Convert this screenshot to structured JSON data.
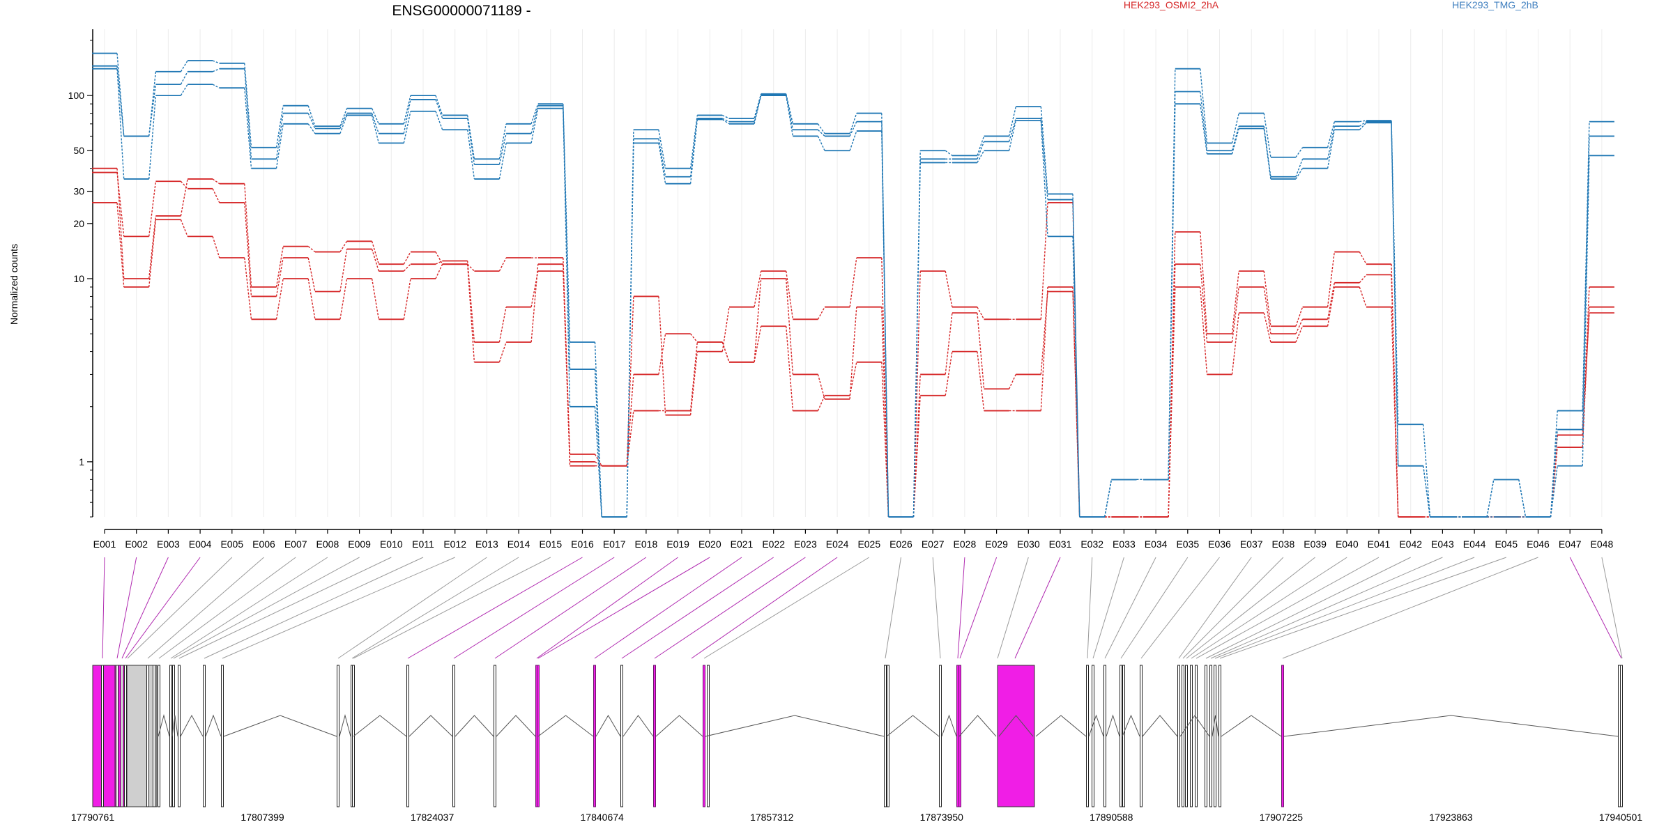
{
  "chart_data": {
    "type": "line",
    "title": "ENSG00000071189 -",
    "ylabel": "Normalized counts",
    "y_scale": "log",
    "ylim": [
      0.5,
      230
    ],
    "y_ticks": [
      1,
      10,
      20,
      30,
      50,
      100
    ],
    "y_tick_labels": [
      "1",
      "10",
      "20",
      "30",
      "50",
      "100"
    ],
    "categories": [
      "E001",
      "E002",
      "E003",
      "E004",
      "E005",
      "E006",
      "E007",
      "E008",
      "E009",
      "E010",
      "E011",
      "E012",
      "E013",
      "E014",
      "E015",
      "E016",
      "E017",
      "E018",
      "E019",
      "E020",
      "E021",
      "E022",
      "E023",
      "E024",
      "E025",
      "E026",
      "E027",
      "E028",
      "E029",
      "E030",
      "E031",
      "E032",
      "E033",
      "E034",
      "E035",
      "E036",
      "E037",
      "E038",
      "E039",
      "E040",
      "E041",
      "E042",
      "E043",
      "E044",
      "E045",
      "E046",
      "E047",
      "E048"
    ],
    "legend": [
      {
        "name": "HEK293_OSMI2_2hA",
        "color": "#d62728",
        "position": "top-center"
      },
      {
        "name": "HEK293_TMG_2hB",
        "color": "#1f77b4",
        "position": "top-right"
      }
    ],
    "series": [
      {
        "group": "HEK293_OSMI2_2hA",
        "color": "#d62728",
        "values": [
          40,
          10,
          22,
          35,
          33,
          9,
          15,
          14,
          16,
          12,
          14,
          12,
          11,
          13,
          13,
          1.1,
          0.95,
          8,
          1.8,
          4,
          7,
          11,
          6,
          7,
          13,
          0.5,
          11,
          7,
          6,
          6,
          26,
          0.5,
          0.5,
          0.5,
          18,
          5,
          11,
          5.5,
          7,
          14,
          12,
          0.5,
          0.5,
          0.5,
          0.5,
          0.5,
          1.4,
          9
        ]
      },
      {
        "group": "HEK293_OSMI2_2hA",
        "color": "#d62728",
        "values": [
          38,
          17,
          34,
          31,
          26,
          8,
          13,
          8.5,
          14.5,
          11,
          12,
          12.5,
          4.5,
          7,
          11,
          1,
          0.95,
          3,
          5,
          4.5,
          3.5,
          10,
          3,
          2.2,
          7,
          0.5,
          3,
          6.5,
          2.5,
          3,
          8.5,
          0.5,
          0.5,
          0.5,
          12,
          4.5,
          9,
          5,
          6,
          9.5,
          10.5,
          0.5,
          0.5,
          0.5,
          0.5,
          0.5,
          1.2,
          7
        ]
      },
      {
        "group": "HEK293_OSMI2_2hA",
        "color": "#d62728",
        "values": [
          26,
          9,
          21,
          17,
          13,
          6,
          10,
          6,
          10,
          6,
          10,
          12,
          3.5,
          4.5,
          12,
          0.95,
          0.95,
          1.9,
          1.9,
          4.5,
          3.5,
          5.5,
          1.9,
          2.3,
          3.5,
          0.5,
          2.3,
          4,
          1.9,
          1.9,
          9,
          0.5,
          0.5,
          0.5,
          9,
          3,
          6.5,
          4.5,
          5.5,
          9,
          7,
          0.5,
          0.5,
          0.5,
          0.5,
          0.5,
          1.4,
          6.5
        ]
      },
      {
        "group": "HEK293_TMG_2hB",
        "color": "#1f77b4",
        "values": [
          170,
          60,
          135,
          155,
          150,
          52,
          88,
          68,
          85,
          70,
          100,
          78,
          45,
          70,
          90,
          4.5,
          0.5,
          65,
          40,
          78,
          75,
          102,
          70,
          62,
          80,
          0.5,
          50,
          47,
          60,
          87,
          29,
          0.5,
          0.8,
          0.8,
          140,
          55,
          80,
          46,
          52,
          72,
          73,
          1.6,
          0.5,
          0.5,
          0.8,
          0.5,
          1.9,
          72
        ]
      },
      {
        "group": "HEK293_TMG_2hB",
        "color": "#1f77b4",
        "values": [
          145,
          60,
          115,
          135,
          140,
          45,
          80,
          66,
          80,
          62,
          95,
          75,
          42,
          62,
          88,
          3.2,
          0.5,
          58,
          36,
          75,
          72,
          101,
          65,
          60,
          72,
          0.5,
          45,
          45,
          56,
          75,
          27,
          0.5,
          0.8,
          0.8,
          105,
          50,
          68,
          36,
          45,
          68,
          72,
          0.95,
          0.5,
          0.5,
          0.8,
          0.5,
          1.5,
          60
        ]
      },
      {
        "group": "HEK293_TMG_2hB",
        "color": "#1f77b4",
        "values": [
          140,
          35,
          100,
          115,
          110,
          40,
          70,
          62,
          78,
          55,
          82,
          65,
          35,
          55,
          85,
          2,
          0.5,
          55,
          33,
          74,
          70,
          100,
          60,
          50,
          64,
          0.5,
          43,
          43,
          50,
          73,
          17,
          0.5,
          0.8,
          0.8,
          90,
          48,
          66,
          35,
          40,
          65,
          71,
          0.95,
          0.5,
          0.5,
          0.5,
          0.5,
          0.95,
          47
        ]
      }
    ]
  },
  "gene_model": {
    "genome_ticks": [
      "17790761",
      "17807399",
      "17824037",
      "17840674",
      "17857312",
      "17873950",
      "17890588",
      "17907225",
      "17923863",
      "17940501"
    ],
    "highlighted_exons": [
      "E001",
      "E002",
      "E003",
      "E004",
      "E016",
      "E017",
      "E018",
      "E019",
      "E020",
      "E021",
      "E022",
      "E023",
      "E024",
      "E028",
      "E029",
      "E031",
      "E047"
    ],
    "colors": {
      "highlight": "#f01ee6",
      "gray_block": "#cfcfcf",
      "line": "#555555",
      "highlight_line": "#b02ab0"
    }
  }
}
